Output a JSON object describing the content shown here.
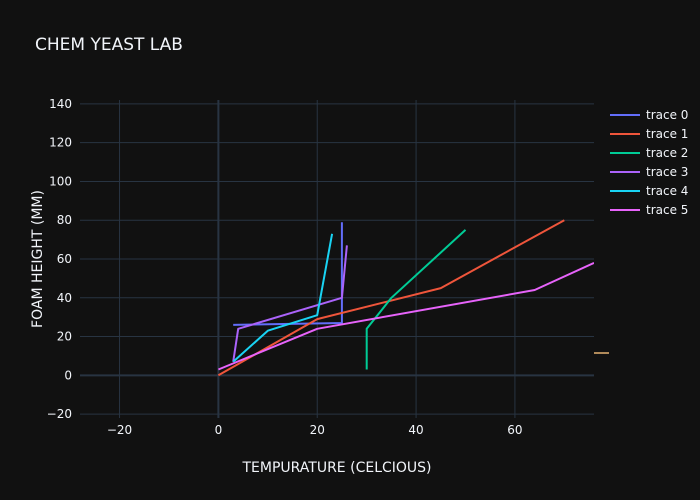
{
  "chart_data": {
    "type": "line",
    "title": "CHEM YEAST LAB",
    "xlabel": "TEMPURATURE (CELCIOUS)",
    "ylabel": "FOAM HEIGHT (MM)",
    "xlim": [
      -28,
      76
    ],
    "ylim": [
      -22,
      142
    ],
    "xticks": [
      -20,
      0,
      20,
      40,
      60
    ],
    "yticks": [
      -20,
      0,
      20,
      40,
      60,
      80,
      100,
      120,
      140
    ],
    "grid": true,
    "legend_position": "top-right",
    "series": [
      {
        "name": "trace 0",
        "color": "#636efa",
        "x": [
          3,
          25,
          25
        ],
        "y": [
          26,
          27,
          79
        ]
      },
      {
        "name": "trace 1",
        "color": "#EF553B",
        "x": [
          0,
          20,
          45,
          70
        ],
        "y": [
          0,
          29,
          45,
          80
        ]
      },
      {
        "name": "trace 2",
        "color": "#00cc96",
        "x": [
          30,
          30,
          35,
          50
        ],
        "y": [
          3,
          24,
          40,
          75
        ]
      },
      {
        "name": "trace 3",
        "color": "#ab63fa",
        "x": [
          3,
          4,
          25,
          26
        ],
        "y": [
          7,
          24,
          40,
          67
        ]
      },
      {
        "name": "trace 4",
        "color": "#19d3f3",
        "x": [
          3,
          10,
          20,
          23
        ],
        "y": [
          7,
          23,
          31,
          73
        ]
      },
      {
        "name": "trace 5",
        "color": "#e763fa",
        "x": [
          0,
          20,
          64,
          76
        ],
        "y": [
          3,
          24,
          44,
          58
        ]
      }
    ]
  }
}
